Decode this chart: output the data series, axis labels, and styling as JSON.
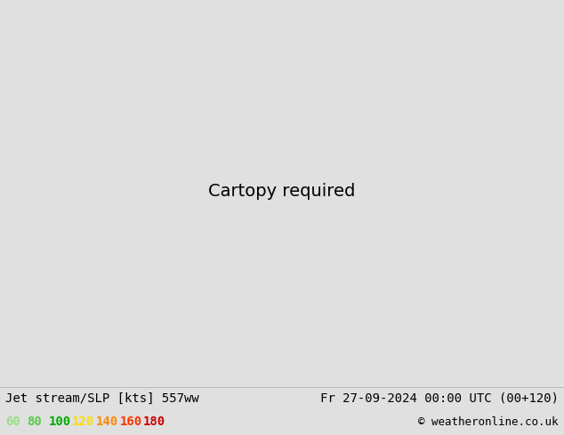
{
  "title_left": "Jet stream/SLP [kts] 557ww",
  "title_right": "Fr 27-09-2024 00:00 UTC (00+120)",
  "copyright": "© weatheronline.co.uk",
  "legend_values": [
    "60",
    "80",
    "100",
    "120",
    "140",
    "160",
    "180"
  ],
  "legend_colors": [
    "#99dd88",
    "#55cc44",
    "#00aa00",
    "#ffdd00",
    "#ff8800",
    "#ff3300",
    "#cc0000"
  ],
  "bg_color": "#e0e0e0",
  "map_bg": "#d8eaf0",
  "land_color": "#c8d8a8",
  "ocean_color": "#d8eaf0",
  "title_fontsize": 10,
  "legend_fontsize": 10,
  "copyright_fontsize": 9,
  "blue_contour_color": "#0000dd",
  "red_contour_color": "#dd0000",
  "black_contour_color": "#000000",
  "label_fontsize": 6,
  "extent": [
    -175,
    -40,
    15,
    80
  ],
  "proj_lon": -100,
  "proj_lat": 50
}
